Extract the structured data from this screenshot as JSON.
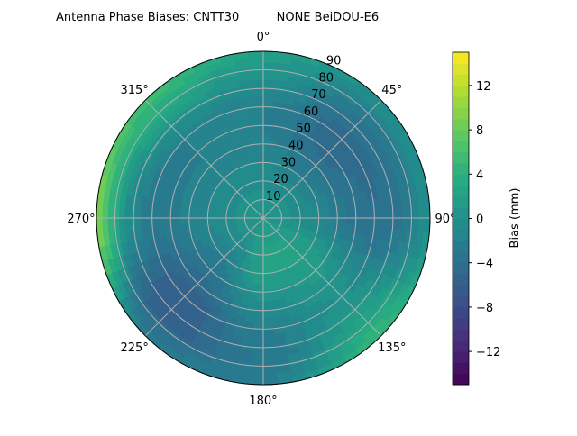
{
  "chart_data": {
    "type": "heatmap",
    "projection": "polar",
    "title": "Antenna Phase Biases: CNTT30          NONE BeiDOU-E6",
    "angle_ticks": [
      "0°",
      "45°",
      "90°",
      "135°",
      "180°",
      "225°",
      "270°",
      "315°"
    ],
    "angle_tick_values": [
      0,
      45,
      90,
      135,
      180,
      225,
      270,
      315
    ],
    "radial_ticks": [
      "10",
      "20",
      "30",
      "40",
      "50",
      "60",
      "70",
      "80",
      "90"
    ],
    "radial_tick_values": [
      10,
      20,
      30,
      40,
      50,
      60,
      70,
      80,
      90
    ],
    "rlim": [
      0,
      90
    ],
    "theta_zero": "top",
    "theta_direction": "clockwise",
    "grid": true,
    "colormap": "viridis",
    "colorbar": {
      "label": "Bias (mm)",
      "range": [
        -15,
        15
      ],
      "ticks": [
        "−12",
        "−8",
        "−4",
        "0",
        "4",
        "8",
        "12"
      ],
      "tick_values": [
        -12,
        -8,
        -4,
        0,
        4,
        8,
        12
      ]
    },
    "zenith": [
      0,
      15,
      30,
      45,
      60,
      75,
      90
    ],
    "azimuth": [
      0,
      45,
      90,
      135,
      180,
      225,
      270,
      315
    ],
    "values": [
      [
        1,
        0,
        -1,
        -2,
        -2,
        0,
        2
      ],
      [
        1,
        0,
        -2,
        -4,
        -5,
        -3,
        0
      ],
      [
        1,
        0,
        -1,
        -3,
        -4,
        -3,
        0
      ],
      [
        1,
        2,
        2,
        1,
        0,
        2,
        5
      ],
      [
        1,
        2,
        2,
        0,
        -2,
        -3,
        -2
      ],
      [
        1,
        0,
        -2,
        -4,
        -6,
        -6,
        -2
      ],
      [
        1,
        0,
        -1,
        -2,
        -3,
        0,
        10
      ],
      [
        1,
        0,
        -1,
        -2,
        -2,
        2,
        6
      ]
    ]
  }
}
